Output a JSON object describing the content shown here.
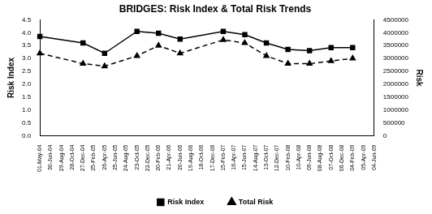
{
  "chart_data": {
    "type": "line",
    "title": "BRIDGES: Risk Index & Total Risk Trends",
    "y_label": "Risk Index",
    "y2_label": "Risk",
    "categories": [
      "01-May-04",
      "30-Jun-04",
      "29-Aug-04",
      "28-Oct-04",
      "27-Dec-04",
      "25-Feb-05",
      "26-Apr-05",
      "25-Jun-05",
      "24-Aug-05",
      "23-Oct-05",
      "22-Dec-05",
      "20-Feb-06",
      "21-Apr-06",
      "20-Jun-06",
      "19-Aug-06",
      "18-Oct-06",
      "17-Dec-06",
      "15-Feb-07",
      "16-Apr-07",
      "15-Jun-07",
      "14-Aug-07",
      "13-Oct-07",
      "12-Dec-07",
      "10-Feb-08",
      "10-Apr-08",
      "09-Jun-08",
      "08-Aug-08",
      "07-Oct-08",
      "06-Dec-08",
      "04-Feb-09",
      "05-Apr-09",
      "04-Jun-09"
    ],
    "series": [
      {
        "name": "Risk Index",
        "color": "#000000",
        "marker": "square",
        "line_style": "solid",
        "axis": "y",
        "values": [
          3.85,
          null,
          null,
          null,
          3.6,
          null,
          3.2,
          null,
          null,
          4.05,
          null,
          3.98,
          null,
          3.75,
          null,
          null,
          null,
          4.05,
          null,
          3.92,
          null,
          3.6,
          null,
          3.35,
          null,
          3.3,
          null,
          3.42,
          null,
          3.42,
          null,
          null
        ]
      },
      {
        "name": "Total Risk",
        "color": "#000000",
        "marker": "triangle",
        "line_style": "dashed",
        "axis": "y2",
        "values": [
          3200000,
          null,
          null,
          null,
          2800000,
          null,
          2700000,
          null,
          null,
          3100000,
          null,
          3500000,
          null,
          3200000,
          null,
          null,
          null,
          3720000,
          null,
          3600000,
          null,
          3100000,
          null,
          2800000,
          null,
          2800000,
          null,
          2900000,
          null,
          3000000,
          null,
          null
        ]
      }
    ],
    "ylim": [
      0,
      4.5
    ],
    "yticks": [
      {
        "value": 0,
        "label": "0.0"
      },
      0.5,
      {
        "value": 1,
        "label": "1.0"
      },
      1.5,
      {
        "value": 2,
        "label": "2.0"
      },
      2.5,
      {
        "value": 3,
        "label": "3.0"
      },
      3.5,
      {
        "value": 4,
        "label": "4.0"
      },
      4.5
    ],
    "y2lim": [
      0,
      4500000
    ],
    "y2ticks": [
      0,
      500000,
      1000000,
      1500000,
      2000000,
      2500000,
      3000000,
      3500000,
      4000000,
      4500000
    ],
    "grid": false,
    "legend": "bottom"
  }
}
